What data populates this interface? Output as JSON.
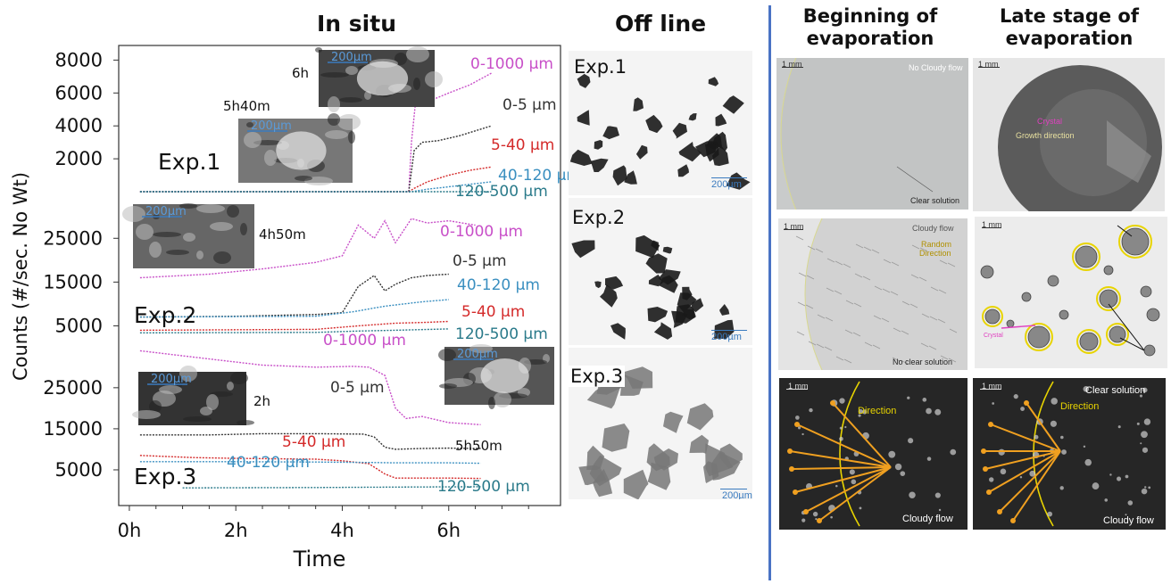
{
  "left_panel": {
    "in_situ_title": "In situ",
    "off_line_title": "Off line"
  },
  "chart_data": {
    "type": "line",
    "xlabel": "Time",
    "ylabel": "Counts (#/sec. No Wt)",
    "x_tick_labels": [
      "0h",
      "2h",
      "4h",
      "6h"
    ],
    "xlim": [
      -0.2,
      8.1
    ],
    "panels": [
      {
        "name": "Exp.1",
        "y_ticks": [
          2000,
          4000,
          6000,
          8000
        ],
        "ylim": [
          0,
          8400
        ],
        "series": [
          {
            "name": "0-1000 µm",
            "color": "#c84fc8",
            "x": [
              0.2,
              5.25,
              5.3,
              5.4,
              5.5,
              5.7,
              6.0,
              6.4,
              6.8
            ],
            "y": [
              0,
              0,
              3000,
              6200,
              5400,
              5600,
              6000,
              6500,
              7200
            ]
          },
          {
            "name": "0-5 µm",
            "color": "#333333",
            "x": [
              0.2,
              5.25,
              5.35,
              5.5,
              5.8,
              6.2,
              6.6,
              6.8
            ],
            "y": [
              0,
              0,
              2500,
              3000,
              3100,
              3400,
              3800,
              4000
            ]
          },
          {
            "name": "5-40 µm",
            "color": "#d42a2a",
            "x": [
              0.2,
              5.25,
              5.35,
              5.6,
              6.0,
              6.4,
              6.8
            ],
            "y": [
              0,
              0,
              200,
              600,
              1000,
              1300,
              1500
            ]
          },
          {
            "name": "40-120 µm",
            "color": "#3a8fc0",
            "x": [
              0.2,
              5.3,
              5.6,
              6.0,
              6.4,
              6.8
            ],
            "y": [
              0,
              0,
              150,
              300,
              450,
              600
            ]
          },
          {
            "name": "120-500 µm",
            "color": "#2a7a8a",
            "x": [
              0.2,
              6.8
            ],
            "y": [
              0,
              0
            ]
          }
        ],
        "annotations": [
          {
            "name": "Exp.1",
            "label": "Exp.1"
          },
          {
            "name": "inset-6h",
            "label": "6h",
            "scale": "200µm"
          },
          {
            "name": "inset-5h40m",
            "label": "5h40m",
            "scale": "200µm"
          }
        ]
      },
      {
        "name": "Exp.2",
        "y_ticks": [
          5000,
          15000,
          25000
        ],
        "ylim": [
          0,
          33000
        ],
        "series": [
          {
            "name": "0-1000 µm",
            "color": "#c84fc8",
            "x": [
              0.2,
              1.5,
              2.5,
              3.5,
              4.0,
              4.3,
              4.6,
              4.8,
              5.0,
              5.3,
              5.6,
              6.0,
              6.5
            ],
            "y": [
              16000,
              16800,
              18000,
              19500,
              21000,
              28000,
              25000,
              29000,
              24000,
              29500,
              28500,
              29000,
              28000
            ]
          },
          {
            "name": "0-5 µm",
            "color": "#333333",
            "x": [
              0.2,
              2.0,
              3.5,
              4.0,
              4.3,
              4.6,
              4.8,
              5.0,
              5.3,
              5.6,
              6.0
            ],
            "y": [
              7000,
              7200,
              7600,
              8000,
              14000,
              16500,
              13000,
              14500,
              16000,
              16500,
              16800
            ]
          },
          {
            "name": "40-120 µm",
            "color": "#3a8fc0",
            "x": [
              0.2,
              3.5,
              4.2,
              4.8,
              5.5,
              6.0
            ],
            "y": [
              7000,
              7200,
              8200,
              9500,
              10500,
              11000
            ]
          },
          {
            "name": "5-40 µm",
            "color": "#d42a2a",
            "x": [
              0.2,
              3.5,
              4.3,
              5.0,
              5.6,
              6.0
            ],
            "y": [
              4000,
              4200,
              5000,
              5600,
              5800,
              6000
            ]
          },
          {
            "name": "120-500 µm",
            "color": "#2a7a8a",
            "x": [
              0.2,
              3.5,
              4.3,
              5.0,
              6.0
            ],
            "y": [
              3400,
              3500,
              3800,
              4000,
              4300
            ]
          }
        ],
        "annotations": [
          {
            "name": "Exp.2",
            "label": "Exp.2"
          },
          {
            "name": "inset-4h50m",
            "label": "4h50m",
            "scale": "200µm"
          }
        ]
      },
      {
        "name": "Exp.3",
        "y_ticks": [
          5000,
          15000,
          25000
        ],
        "ylim": [
          0,
          33000
        ],
        "series": [
          {
            "name": "0-1000 µm",
            "color": "#c84fc8",
            "x": [
              0.2,
              1.5,
              2.5,
              3.5,
              4.2,
              4.5,
              4.8,
              5.0,
              5.2,
              5.5,
              6.0,
              6.6
            ],
            "y": [
              34000,
              32000,
              30500,
              30000,
              30200,
              30000,
              28000,
              20000,
              17500,
              18000,
              16500,
              16000
            ]
          },
          {
            "name": "0-5 µm",
            "color": "#333333",
            "x": [
              0.2,
              1.5,
              2.5,
              3.5,
              4.4,
              4.6,
              4.8,
              5.0,
              5.5,
              6.0,
              6.6
            ],
            "y": [
              13500,
              13500,
              13800,
              13800,
              13700,
              13000,
              10500,
              10000,
              10200,
              10300,
              10200
            ]
          },
          {
            "name": "5-40 µm",
            "color": "#d42a2a",
            "x": [
              0.2,
              1.2,
              2.0,
              3.5,
              4.0,
              4.5,
              4.8,
              5.0,
              6.0,
              6.6
            ],
            "y": [
              8500,
              8000,
              7800,
              7600,
              7200,
              6500,
              4000,
              3000,
              3000,
              2900
            ]
          },
          {
            "name": "40-120 µm",
            "color": "#3a8fc0",
            "x": [
              0.2,
              2.0,
              3.5,
              4.5,
              5.0,
              6.0,
              6.6
            ],
            "y": [
              7000,
              7000,
              6900,
              6800,
              6700,
              6700,
              6600
            ]
          },
          {
            "name": "120-500 µm",
            "color": "#2a7a8a",
            "x": [
              1.0,
              3.5,
              5.0,
              6.6
            ],
            "y": [
              600,
              700,
              800,
              900
            ]
          }
        ],
        "annotations": [
          {
            "name": "Exp.3",
            "label": "Exp.3"
          },
          {
            "name": "inset-2h",
            "label": "2h",
            "scale": "200µm"
          },
          {
            "name": "inset-5h50m",
            "label": "5h50m",
            "scale": "200µm"
          }
        ]
      }
    ]
  },
  "off_line": [
    {
      "label": "Exp.1",
      "scale": "200µm"
    },
    {
      "label": "Exp.2",
      "scale": "200µm"
    },
    {
      "label": "Exp.3",
      "scale": "200µm"
    }
  ],
  "right_panel": {
    "col1_title": "Beginning of evaporation",
    "col2_title": "Late stage of evaporation",
    "photos": {
      "r1c1": {
        "scale": "1 mm",
        "label1": "No Cloudy flow",
        "label2": "Clear solution"
      },
      "r1c2": {
        "scale": "1 mm",
        "label1": "Crystal",
        "label2": "Growth direction"
      },
      "r2c1": {
        "scale": "1 mm",
        "label1": "Cloudy flow",
        "label2": "Random",
        "label3": "Direction",
        "label4": "No clear solution"
      },
      "r2c2": {
        "scale": "1 mm",
        "label1": "Crystal"
      },
      "r3c1": {
        "scale": "1 mm",
        "label1": "Direction",
        "label2": "Cloudy flow"
      },
      "r3c2": {
        "scale": "1 mm",
        "label1": "Clear solution",
        "label2": "Direction",
        "label3": "Cloudy flow"
      }
    }
  },
  "colors": {
    "divider": "#4a73c4",
    "magenta": "#c84fc8",
    "red": "#d42a2a",
    "blue": "#3a8fc0",
    "teal": "#2a7a8a",
    "annotation_yellow": "#e8d400",
    "arrow_orange": "#f0a020"
  }
}
